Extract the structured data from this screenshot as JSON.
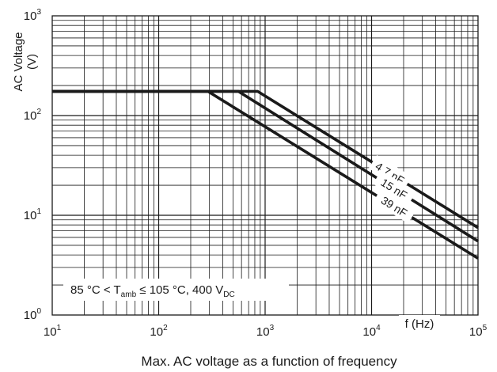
{
  "chart_data": {
    "type": "line",
    "caption": "Max. AC voltage as a function of frequency",
    "ylabel": "AC Voltage",
    "ylabel_unit": "(V)",
    "xlabel": "f (Hz)",
    "xscale": "log",
    "yscale": "log",
    "xlim": [
      10,
      100000
    ],
    "ylim": [
      1,
      1000
    ],
    "grid": true,
    "x_ticks": [
      {
        "base": "10",
        "exp": "1"
      },
      {
        "base": "10",
        "exp": "2"
      },
      {
        "base": "10",
        "exp": "3"
      },
      {
        "base": "10",
        "exp": "4"
      },
      {
        "base": "10",
        "exp": "5"
      }
    ],
    "y_ticks": [
      {
        "base": "10",
        "exp": "0"
      },
      {
        "base": "10",
        "exp": "1"
      },
      {
        "base": "10",
        "exp": "2"
      },
      {
        "base": "10",
        "exp": "3"
      }
    ],
    "annotation": {
      "prefix": "85 °C < T",
      "sub1": "amb",
      "middle": " ≤ 105 °C, 400 V",
      "sub2": "DC"
    },
    "series": [
      {
        "name": "4.7 nF",
        "x": [
          10,
          850,
          100000
        ],
        "y": [
          175,
          175,
          7.5
        ]
      },
      {
        "name": "15 nF",
        "x": [
          10,
          560,
          100000
        ],
        "y": [
          175,
          175,
          5.5
        ]
      },
      {
        "name": "39 nF",
        "x": [
          10,
          290,
          100000
        ],
        "y": [
          175,
          175,
          3.7
        ]
      }
    ]
  }
}
